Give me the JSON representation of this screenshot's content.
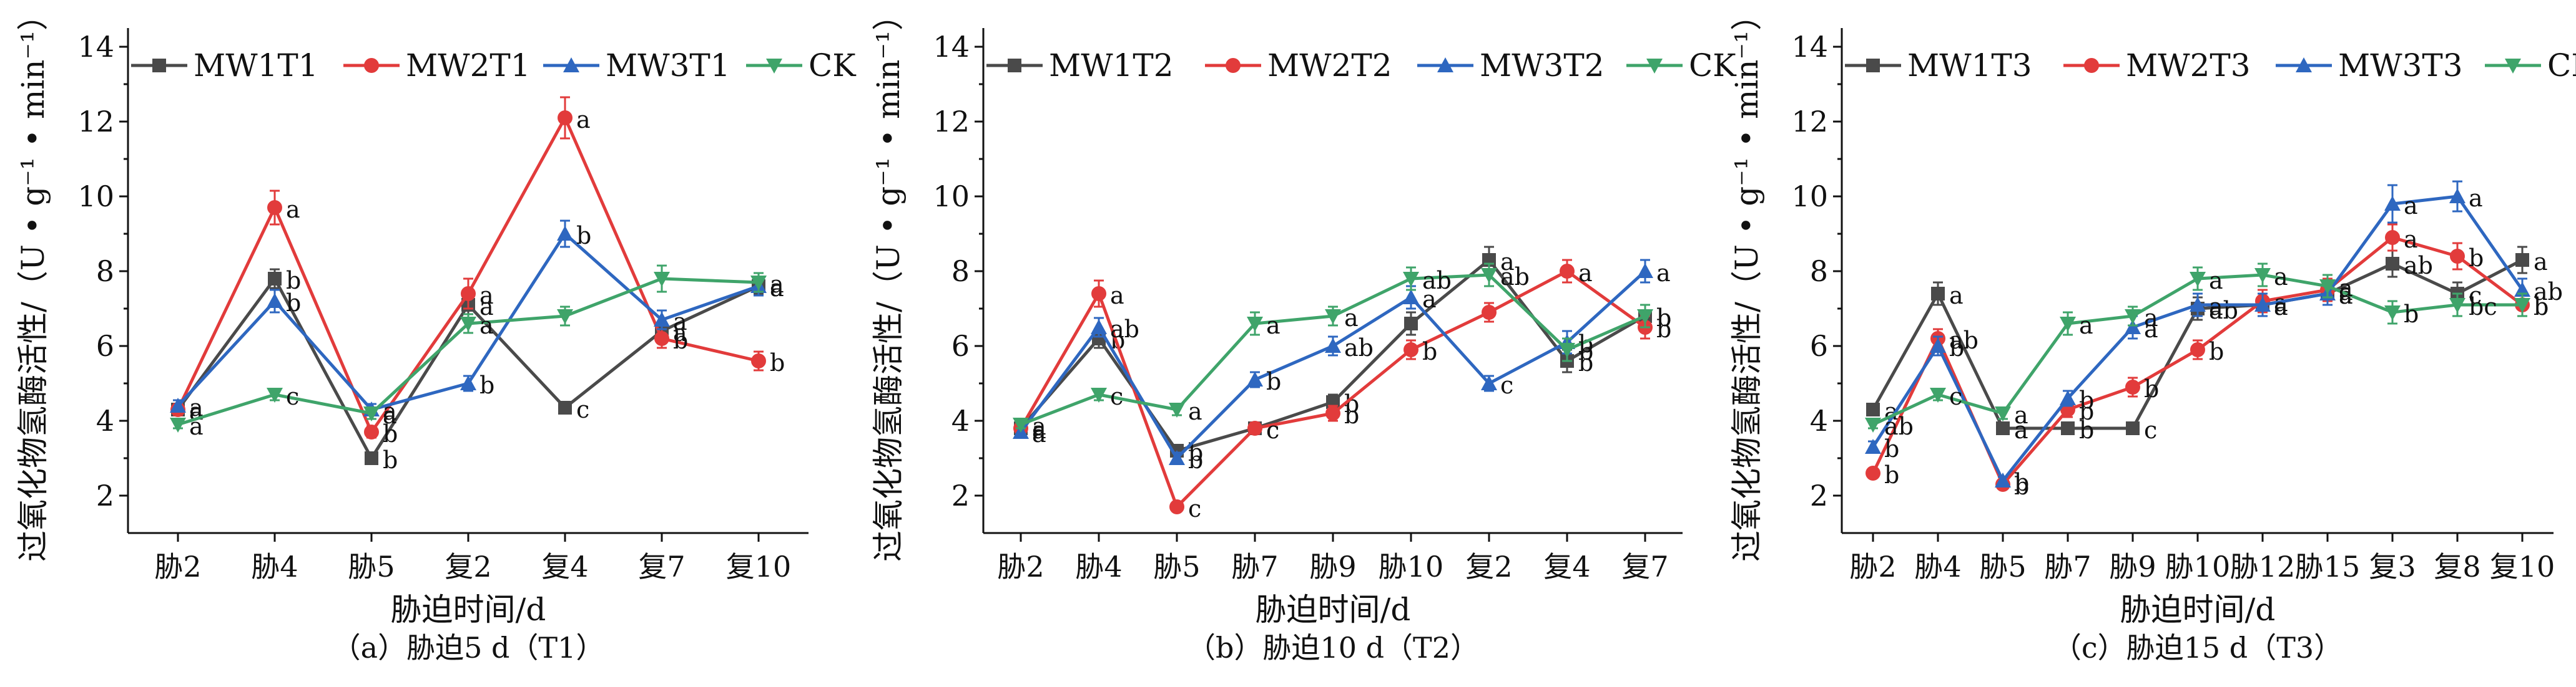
{
  "colors": {
    "MW1": "#4a4a4a",
    "MW2": "#e23b3b",
    "MW3": "#2e67c0",
    "CK": "#3fa46a"
  },
  "chart_data": [
    {
      "type": "line",
      "title": "",
      "caption": "（a）胁迫5 d（T1）",
      "xlabel": "胁迫时间/d",
      "ylabel": "过氧化物氢酶活性/（U • g⁻¹ • min⁻¹）",
      "ylim": [
        1,
        14.5
      ],
      "yticks": [
        "2",
        "4",
        "6",
        "8",
        "10",
        "12",
        "14"
      ],
      "categories": [
        "胁2",
        "胁4",
        "胁5",
        "复2",
        "复4",
        "复7",
        "复10"
      ],
      "legend": [
        "MW1T1",
        "MW2T1",
        "MW3T1",
        "CK"
      ],
      "series": [
        {
          "name": "MW1T1",
          "values": [
            4.3,
            7.8,
            3.0,
            7.1,
            4.35,
            6.4,
            7.6
          ],
          "errors": [
            0.15,
            0.25,
            0.15,
            0.25,
            0.15,
            0.25,
            0.2
          ],
          "labels": [
            "a",
            "b",
            "b",
            "a",
            "c",
            "a",
            "a"
          ]
        },
        {
          "name": "MW2T1",
          "values": [
            4.3,
            9.7,
            3.7,
            7.4,
            12.1,
            6.2,
            5.6
          ],
          "errors": [
            0.15,
            0.45,
            0.15,
            0.4,
            0.55,
            0.25,
            0.25
          ],
          "labels": [
            "a",
            "a",
            "b",
            "a",
            "a",
            "b",
            "b"
          ]
        },
        {
          "name": "MW3T1",
          "values": [
            4.4,
            7.2,
            4.3,
            5.0,
            9.0,
            6.7,
            7.6
          ],
          "errors": [
            0.15,
            0.3,
            0.15,
            0.2,
            0.35,
            0.25,
            0.25
          ],
          "labels": [
            "a",
            "b",
            "a",
            "b",
            "b",
            "a",
            "a"
          ]
        },
        {
          "name": "CK",
          "values": [
            3.9,
            4.7,
            4.2,
            6.6,
            6.8,
            7.8,
            7.7
          ],
          "errors": [
            0.1,
            0.15,
            0.15,
            0.25,
            0.25,
            0.35,
            0.25
          ],
          "labels": [
            "a",
            "c",
            "a",
            "a",
            "",
            "",
            "a"
          ]
        }
      ]
    },
    {
      "type": "line",
      "title": "",
      "caption": "（b）胁迫10 d（T2）",
      "xlabel": "胁迫时间/d",
      "ylabel": "过氧化物氢酶活性/（U • g⁻¹ • min⁻¹）",
      "ylim": [
        1,
        14.5
      ],
      "yticks": [
        "2",
        "4",
        "6",
        "8",
        "10",
        "12",
        "14"
      ],
      "categories": [
        "胁2",
        "胁4",
        "胁5",
        "胁7",
        "胁9",
        "胁10",
        "复2",
        "复4",
        "复7"
      ],
      "legend": [
        "MW1T2",
        "MW2T2",
        "MW3T2",
        "CK"
      ],
      "series": [
        {
          "name": "MW1T2",
          "values": [
            3.8,
            6.2,
            3.2,
            3.8,
            4.5,
            6.6,
            8.3,
            5.6,
            6.8
          ],
          "errors": [
            0.1,
            0.25,
            0.15,
            0.15,
            0.2,
            0.3,
            0.35,
            0.3,
            0.3
          ],
          "labels": [
            "a",
            "b",
            "b",
            "c",
            "b",
            "",
            "a",
            "b",
            "b"
          ]
        },
        {
          "name": "MW2T2",
          "values": [
            3.8,
            7.4,
            1.7,
            3.8,
            4.2,
            5.9,
            6.9,
            8.0,
            6.5
          ],
          "errors": [
            0.1,
            0.35,
            0.1,
            0.15,
            0.2,
            0.25,
            0.25,
            0.3,
            0.3
          ],
          "labels": [
            "a",
            "a",
            "c",
            "c",
            "b",
            "b",
            "",
            "a",
            "b"
          ]
        },
        {
          "name": "MW3T2",
          "values": [
            3.7,
            6.5,
            3.0,
            5.1,
            6.0,
            7.3,
            5.0,
            6.1,
            8.0
          ],
          "errors": [
            0.1,
            0.25,
            0.15,
            0.2,
            0.25,
            0.3,
            0.2,
            0.3,
            0.3
          ],
          "labels": [
            "a",
            "ab",
            "b",
            "b",
            "ab",
            "a",
            "c",
            "b",
            "a"
          ]
        },
        {
          "name": "CK",
          "values": [
            3.9,
            4.7,
            4.3,
            6.6,
            6.8,
            7.8,
            7.9,
            5.9,
            6.8
          ],
          "errors": [
            0.1,
            0.15,
            0.15,
            0.3,
            0.25,
            0.3,
            0.3,
            0.3,
            0.3
          ],
          "labels": [
            "a",
            "c",
            "a",
            "a",
            "a",
            "ab",
            "ab",
            "b",
            "b"
          ]
        }
      ]
    },
    {
      "type": "line",
      "title": "",
      "caption": "（c）胁迫15 d（T3）",
      "xlabel": "胁迫时间/d",
      "ylabel": "过氧化物氢酶活性/（U • g⁻¹ • min⁻¹）",
      "ylim": [
        1,
        14.5
      ],
      "yticks": [
        "2",
        "4",
        "6",
        "8",
        "10",
        "12",
        "14"
      ],
      "categories": [
        "胁2",
        "胁4",
        "胁5",
        "胁7",
        "胁9",
        "胁10",
        "胁12",
        "胁15",
        "复3",
        "复8",
        "复10"
      ],
      "legend": [
        "MW1T3",
        "MW2T3",
        "MW3T3",
        "CK"
      ],
      "series": [
        {
          "name": "MW1T3",
          "values": [
            4.3,
            7.4,
            3.8,
            3.8,
            3.8,
            7.0,
            7.1,
            7.4,
            8.2,
            7.4,
            8.3
          ],
          "errors": [
            0.15,
            0.3,
            0.15,
            0.15,
            0.15,
            0.3,
            0.3,
            0.3,
            0.35,
            0.3,
            0.35
          ],
          "labels": [
            "a",
            "a",
            "a",
            "b",
            "c",
            "ab",
            "a",
            "a",
            "ab",
            "c",
            "a"
          ]
        },
        {
          "name": "MW2T3",
          "values": [
            2.6,
            6.2,
            2.3,
            4.3,
            4.9,
            5.9,
            7.2,
            7.5,
            8.9,
            8.4,
            7.1
          ],
          "errors": [
            0.1,
            0.25,
            0.1,
            0.2,
            0.25,
            0.25,
            0.3,
            0.3,
            0.35,
            0.35,
            0.3
          ],
          "labels": [
            "b",
            "ab",
            "b",
            "b",
            "b",
            "b",
            "a",
            "a",
            "a",
            "b",
            "b"
          ]
        },
        {
          "name": "MW3T3",
          "values": [
            3.3,
            6.0,
            2.4,
            4.6,
            6.5,
            7.1,
            7.1,
            7.4,
            9.8,
            10.0,
            7.5
          ],
          "errors": [
            0.15,
            0.25,
            0.1,
            0.2,
            0.3,
            0.3,
            0.3,
            0.3,
            0.5,
            0.4,
            0.3
          ],
          "labels": [
            "b",
            "b",
            "b",
            "b",
            "a",
            "a",
            "a",
            "a",
            "a",
            "a",
            "ab"
          ]
        },
        {
          "name": "CK",
          "values": [
            3.9,
            4.7,
            4.2,
            6.6,
            6.8,
            7.8,
            7.9,
            7.6,
            6.9,
            7.1,
            7.1
          ],
          "errors": [
            0.1,
            0.15,
            0.15,
            0.3,
            0.25,
            0.3,
            0.3,
            0.3,
            0.3,
            0.3,
            0.3
          ],
          "labels": [
            "ab",
            "c",
            "a",
            "a",
            "a",
            "a",
            "a",
            "a",
            "b",
            "bc",
            "b"
          ]
        }
      ]
    }
  ]
}
